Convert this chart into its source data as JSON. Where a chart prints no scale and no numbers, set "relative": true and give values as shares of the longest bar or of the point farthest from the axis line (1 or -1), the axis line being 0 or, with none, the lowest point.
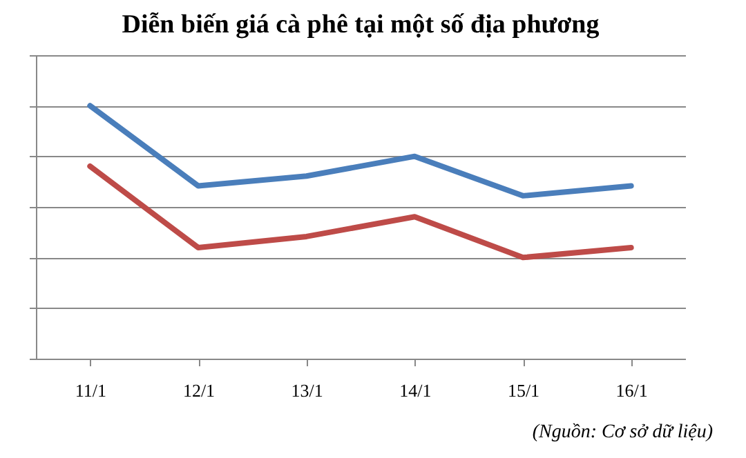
{
  "chart_data": {
    "type": "line",
    "title": "Diễn biến giá cà phê tại một số địa phương",
    "categories": [
      "11/1",
      "12/1",
      "13/1",
      "14/1",
      "15/1",
      "16/1"
    ],
    "relative": true,
    "grid": "y",
    "marker": "none",
    "line_style": "solid",
    "series": [
      {
        "color": "#4a7ebb",
        "values": [
          1,
          0.683,
          0.722,
          0.8,
          0.644,
          0.683
        ]
      },
      {
        "color": "#be4b48",
        "values": [
          0.761,
          0.439,
          0.483,
          0.561,
          0.4,
          0.439
        ]
      }
    ],
    "annotations": [
      "(Nguồn: Cơ sở dữ liệu)"
    ]
  }
}
